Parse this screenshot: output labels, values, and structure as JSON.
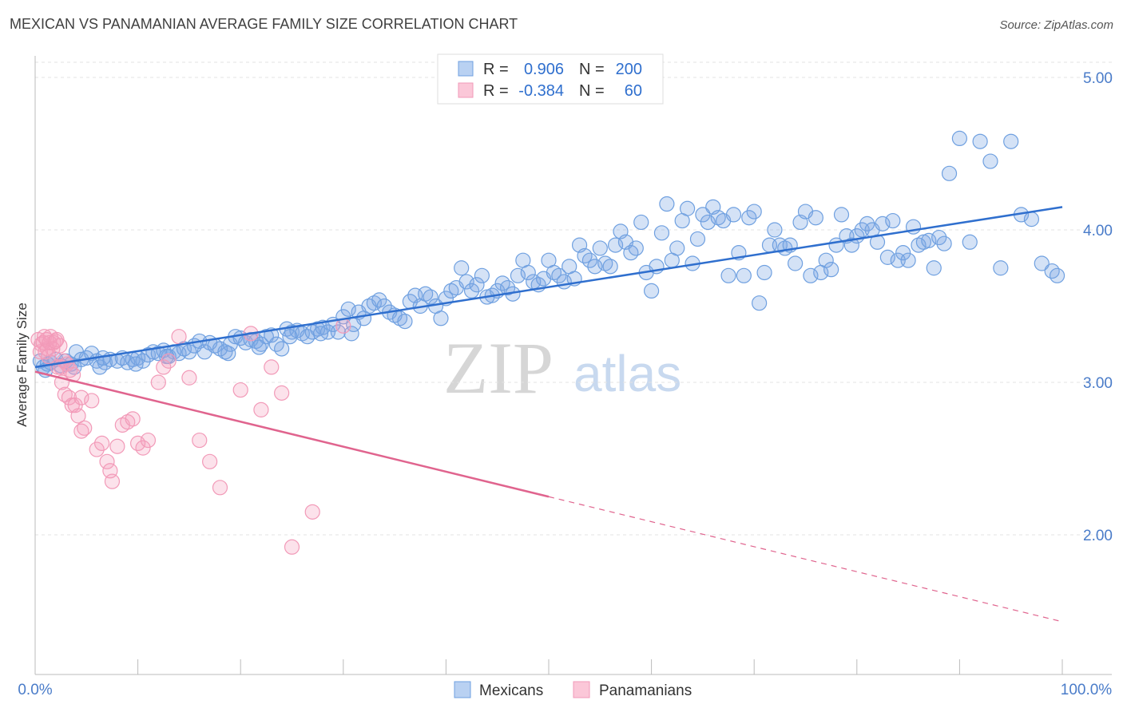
{
  "title": "MEXICAN VS PANAMANIAN AVERAGE FAMILY SIZE CORRELATION CHART",
  "source": "Source: ZipAtlas.com",
  "watermark": {
    "zip": "ZIP",
    "atlas": "atlas"
  },
  "colors": {
    "mexicans": "#6fa0e0",
    "mexicans_line": "#2f6fce",
    "panamanians": "#f29ab8",
    "panamanians_line": "#e0648e",
    "tick_text": "#4a7cc9"
  },
  "stats_box": {
    "rows": [
      {
        "r_label": "R =",
        "r_value": "0.906",
        "n_label": "N =",
        "n_value": "200"
      },
      {
        "r_label": "R =",
        "r_value": "-0.384",
        "n_label": "N =",
        "n_value": "60"
      }
    ]
  },
  "chart_data": {
    "type": "scatter",
    "title": "MEXICAN VS PANAMANIAN AVERAGE FAMILY SIZE CORRELATION CHART",
    "xlabel": "",
    "ylabel": "Average Family Size",
    "xlim": [
      0,
      100
    ],
    "ylim": [
      1.2,
      5.2
    ],
    "x_tick_labels": [
      "0.0%",
      "100.0%"
    ],
    "y_ticks": [
      2.0,
      3.0,
      4.0,
      5.0
    ],
    "y_tick_labels": [
      "2.00",
      "3.00",
      "4.00",
      "5.00"
    ],
    "grid": true,
    "legend": {
      "placement": "bottom-center",
      "entries": [
        "Mexicans",
        "Panamanians"
      ]
    },
    "series": [
      {
        "name": "Mexicans",
        "r": 0.906,
        "n": 200,
        "trend": {
          "x": [
            0,
            100
          ],
          "y": [
            3.1,
            4.15
          ]
        },
        "points": [
          [
            0.5,
            3.14
          ],
          [
            0.8,
            3.1
          ],
          [
            1.2,
            3.12
          ],
          [
            1.5,
            3.13
          ],
          [
            2,
            3.15
          ],
          [
            2.5,
            3.11
          ],
          [
            3,
            3.14
          ],
          [
            3.5,
            3.12
          ],
          [
            4,
            3.2
          ],
          [
            4.5,
            3.15
          ],
          [
            5,
            3.16
          ],
          [
            5.5,
            3.19
          ],
          [
            6,
            3.14
          ],
          [
            6.3,
            3.1
          ],
          [
            6.8,
            3.13
          ],
          [
            7.3,
            3.15
          ],
          [
            8,
            3.14
          ],
          [
            8.5,
            3.16
          ],
          [
            9,
            3.13
          ],
          [
            9.5,
            3.15
          ],
          [
            10,
            3.16
          ],
          [
            10.5,
            3.14
          ],
          [
            11,
            3.18
          ],
          [
            11.5,
            3.2
          ],
          [
            12,
            3.19
          ],
          [
            12.5,
            3.21
          ],
          [
            13,
            3.17
          ],
          [
            13.5,
            3.2
          ],
          [
            14,
            3.19
          ],
          [
            14.5,
            3.22
          ],
          [
            15,
            3.2
          ],
          [
            15.5,
            3.24
          ],
          [
            16,
            3.27
          ],
          [
            16.5,
            3.2
          ],
          [
            17,
            3.26
          ],
          [
            17.5,
            3.24
          ],
          [
            18,
            3.22
          ],
          [
            18.5,
            3.2
          ],
          [
            19,
            3.25
          ],
          [
            19.5,
            3.3
          ],
          [
            20,
            3.29
          ],
          [
            20.5,
            3.26
          ],
          [
            21,
            3.28
          ],
          [
            21.5,
            3.27
          ],
          [
            22,
            3.25
          ],
          [
            22.5,
            3.3
          ],
          [
            23,
            3.31
          ],
          [
            23.5,
            3.25
          ],
          [
            24,
            3.22
          ],
          [
            24.5,
            3.35
          ],
          [
            25,
            3.33
          ],
          [
            25.5,
            3.34
          ],
          [
            26,
            3.32
          ],
          [
            26.5,
            3.3
          ],
          [
            27,
            3.33
          ],
          [
            27.5,
            3.35
          ],
          [
            28,
            3.36
          ],
          [
            28.5,
            3.33
          ],
          [
            29,
            3.38
          ],
          [
            29.5,
            3.33
          ],
          [
            30,
            3.43
          ],
          [
            30.5,
            3.48
          ],
          [
            31,
            3.38
          ],
          [
            31.5,
            3.46
          ],
          [
            32,
            3.42
          ],
          [
            32.5,
            3.5
          ],
          [
            33,
            3.52
          ],
          [
            33.5,
            3.54
          ],
          [
            34,
            3.5
          ],
          [
            34.5,
            3.46
          ],
          [
            35,
            3.44
          ],
          [
            35.5,
            3.42
          ],
          [
            36,
            3.4
          ],
          [
            36.5,
            3.53
          ],
          [
            37,
            3.57
          ],
          [
            37.5,
            3.5
          ],
          [
            38,
            3.58
          ],
          [
            38.5,
            3.56
          ],
          [
            39,
            3.5
          ],
          [
            39.5,
            3.42
          ],
          [
            40,
            3.55
          ],
          [
            40.5,
            3.6
          ],
          [
            41,
            3.62
          ],
          [
            41.5,
            3.75
          ],
          [
            42,
            3.66
          ],
          [
            42.5,
            3.6
          ],
          [
            43,
            3.64
          ],
          [
            43.5,
            3.7
          ],
          [
            44,
            3.56
          ],
          [
            44.5,
            3.57
          ],
          [
            45,
            3.6
          ],
          [
            45.5,
            3.65
          ],
          [
            46,
            3.62
          ],
          [
            46.5,
            3.58
          ],
          [
            47,
            3.7
          ],
          [
            47.5,
            3.8
          ],
          [
            48,
            3.72
          ],
          [
            48.5,
            3.66
          ],
          [
            49,
            3.64
          ],
          [
            49.5,
            3.68
          ],
          [
            50,
            3.8
          ],
          [
            50.5,
            3.72
          ],
          [
            51,
            3.7
          ],
          [
            51.5,
            3.66
          ],
          [
            52,
            3.76
          ],
          [
            52.5,
            3.68
          ],
          [
            53,
            3.9
          ],
          [
            53.5,
            3.83
          ],
          [
            54,
            3.8
          ],
          [
            54.5,
            3.76
          ],
          [
            55,
            3.88
          ],
          [
            55.5,
            3.78
          ],
          [
            56,
            3.76
          ],
          [
            56.5,
            3.9
          ],
          [
            57,
            3.99
          ],
          [
            57.5,
            3.92
          ],
          [
            58,
            3.85
          ],
          [
            58.5,
            3.88
          ],
          [
            59,
            4.05
          ],
          [
            59.5,
            3.72
          ],
          [
            60,
            3.6
          ],
          [
            60.5,
            3.76
          ],
          [
            61,
            3.98
          ],
          [
            61.5,
            4.17
          ],
          [
            62,
            3.8
          ],
          [
            62.5,
            3.88
          ],
          [
            63,
            4.06
          ],
          [
            63.5,
            4.14
          ],
          [
            64,
            3.78
          ],
          [
            64.5,
            3.94
          ],
          [
            65,
            4.1
          ],
          [
            65.5,
            4.05
          ],
          [
            66,
            4.15
          ],
          [
            66.5,
            4.08
          ],
          [
            67,
            4.06
          ],
          [
            67.5,
            3.7
          ],
          [
            68,
            4.1
          ],
          [
            68.5,
            3.85
          ],
          [
            69,
            3.7
          ],
          [
            69.5,
            4.08
          ],
          [
            70,
            4.12
          ],
          [
            70.5,
            3.52
          ],
          [
            71,
            3.72
          ],
          [
            71.5,
            3.9
          ],
          [
            72,
            4.0
          ],
          [
            72.5,
            3.9
          ],
          [
            73,
            3.88
          ],
          [
            73.5,
            3.9
          ],
          [
            74,
            3.78
          ],
          [
            74.5,
            4.05
          ],
          [
            75,
            4.12
          ],
          [
            75.5,
            3.7
          ],
          [
            76,
            4.08
          ],
          [
            76.5,
            3.72
          ],
          [
            77,
            3.8
          ],
          [
            77.5,
            3.74
          ],
          [
            78,
            3.9
          ],
          [
            78.5,
            4.1
          ],
          [
            79,
            3.96
          ],
          [
            79.5,
            3.9
          ],
          [
            80,
            3.96
          ],
          [
            80.5,
            4.0
          ],
          [
            81,
            4.04
          ],
          [
            81.5,
            4.0
          ],
          [
            82,
            3.92
          ],
          [
            82.5,
            4.04
          ],
          [
            83,
            3.82
          ],
          [
            83.5,
            4.06
          ],
          [
            84,
            3.8
          ],
          [
            84.5,
            3.85
          ],
          [
            85,
            3.8
          ],
          [
            85.5,
            4.02
          ],
          [
            86,
            3.9
          ],
          [
            86.5,
            3.92
          ],
          [
            87,
            3.93
          ],
          [
            87.5,
            3.75
          ],
          [
            88,
            3.95
          ],
          [
            88.5,
            3.91
          ],
          [
            89,
            4.37
          ],
          [
            90,
            4.6
          ],
          [
            91,
            3.92
          ],
          [
            92,
            4.58
          ],
          [
            93,
            4.45
          ],
          [
            94,
            3.75
          ],
          [
            95,
            4.58
          ],
          [
            96,
            4.1
          ],
          [
            97,
            4.07
          ],
          [
            98,
            3.78
          ],
          [
            99,
            3.73
          ],
          [
            99.5,
            3.7
          ],
          [
            1,
            3.08
          ],
          [
            3.8,
            3.1
          ],
          [
            6.6,
            3.16
          ],
          [
            9.8,
            3.12
          ],
          [
            12.8,
            3.17
          ],
          [
            18.8,
            3.19
          ],
          [
            21.8,
            3.23
          ],
          [
            24.8,
            3.3
          ],
          [
            27.8,
            3.32
          ],
          [
            30.8,
            3.32
          ]
        ]
      },
      {
        "name": "Panamanians",
        "r": -0.384,
        "n": 60,
        "trend": {
          "x": [
            0,
            50
          ],
          "y": [
            3.07,
            2.25
          ]
        },
        "trend_dashed": {
          "x": [
            50,
            100
          ],
          "y": [
            2.25,
            1.43
          ]
        },
        "points": [
          [
            0.3,
            3.28
          ],
          [
            0.6,
            3.25
          ],
          [
            0.9,
            3.3
          ],
          [
            1.2,
            3.22
          ],
          [
            1.5,
            3.3
          ],
          [
            1.8,
            3.26
          ],
          [
            2.1,
            3.28
          ],
          [
            2.4,
            3.24
          ],
          [
            0.5,
            3.2
          ],
          [
            0.8,
            3.26
          ],
          [
            1.1,
            3.28
          ],
          [
            1.4,
            3.26
          ],
          [
            1.7,
            3.22
          ],
          [
            2.0,
            3.27
          ],
          [
            1.0,
            3.2
          ],
          [
            1.3,
            3.17
          ],
          [
            2.2,
            3.1
          ],
          [
            2.5,
            3.1
          ],
          [
            2.8,
            3.14
          ],
          [
            3.1,
            3.12
          ],
          [
            3.4,
            3.08
          ],
          [
            3.7,
            3.05
          ],
          [
            2.6,
            3.0
          ],
          [
            2.9,
            2.92
          ],
          [
            3.3,
            2.9
          ],
          [
            3.6,
            2.85
          ],
          [
            3.9,
            2.85
          ],
          [
            4.2,
            2.78
          ],
          [
            4.5,
            2.9
          ],
          [
            4.8,
            2.7
          ],
          [
            4.5,
            2.68
          ],
          [
            5.5,
            2.88
          ],
          [
            6,
            2.56
          ],
          [
            6.5,
            2.6
          ],
          [
            7,
            2.48
          ],
          [
            7.5,
            2.35
          ],
          [
            8,
            2.58
          ],
          [
            7.3,
            2.42
          ],
          [
            8.5,
            2.72
          ],
          [
            9,
            2.74
          ],
          [
            9.5,
            2.76
          ],
          [
            10,
            2.6
          ],
          [
            10.5,
            2.57
          ],
          [
            11,
            2.62
          ],
          [
            12,
            3.0
          ],
          [
            12.5,
            3.1
          ],
          [
            13,
            3.14
          ],
          [
            14,
            3.3
          ],
          [
            15,
            3.03
          ],
          [
            16,
            2.62
          ],
          [
            17,
            2.48
          ],
          [
            18,
            2.31
          ],
          [
            20,
            2.95
          ],
          [
            21,
            3.32
          ],
          [
            22,
            2.82
          ],
          [
            23,
            3.1
          ],
          [
            24,
            2.93
          ],
          [
            25,
            1.92
          ],
          [
            27,
            2.15
          ],
          [
            30,
            3.37
          ]
        ]
      }
    ]
  }
}
